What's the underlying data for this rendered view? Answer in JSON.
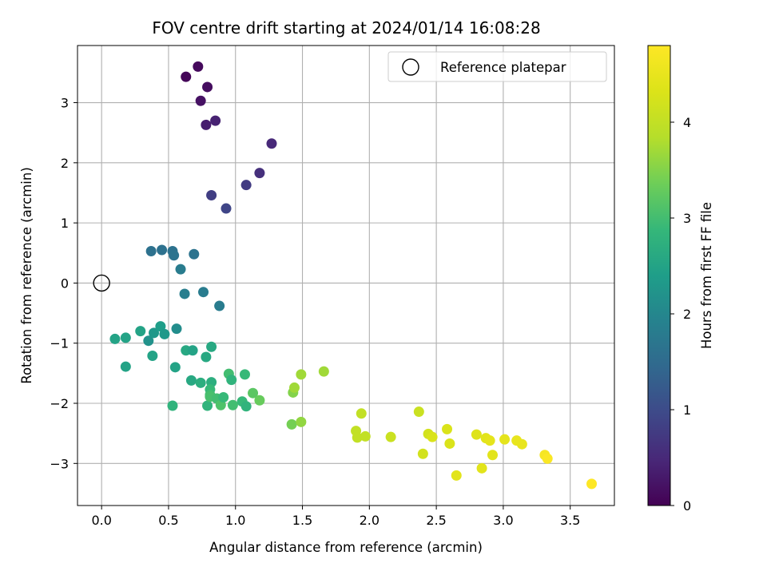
{
  "chart_data": {
    "type": "scatter",
    "title": "FOV centre drift starting at 2024/01/14 16:08:28",
    "xlabel": "Angular distance from reference (arcmin)",
    "ylabel": "Rotation from reference (arcmin)",
    "xlim": [
      -0.18,
      3.83
    ],
    "ylim": [
      -3.7,
      3.95
    ],
    "x_ticks": [
      0.0,
      0.5,
      1.0,
      1.5,
      2.0,
      2.5,
      3.0,
      3.5
    ],
    "x_tick_labels": [
      "0.0",
      "0.5",
      "1.0",
      "1.5",
      "2.0",
      "2.5",
      "3.0",
      "3.5"
    ],
    "y_ticks": [
      -3,
      -2,
      -1,
      0,
      1,
      2,
      3
    ],
    "y_tick_labels": [
      "−3",
      "−2",
      "−1",
      "0",
      "1",
      "2",
      "3"
    ],
    "grid": true,
    "legend": {
      "placement": "top-right",
      "entries": [
        {
          "label": "Reference platepar",
          "marker": "open-circle"
        }
      ]
    },
    "reference_point": {
      "x": 0.0,
      "y": 0.0
    },
    "colorbar": {
      "label": "Hours from first FF file",
      "colormap": "viridis",
      "range": [
        0,
        4.8
      ],
      "ticks": [
        0,
        1,
        2,
        3,
        4
      ],
      "tick_labels": [
        "0",
        "1",
        "2",
        "3",
        "4"
      ]
    },
    "points": [
      {
        "x": 0.63,
        "y": 3.43,
        "c": 0.05
      },
      {
        "x": 0.72,
        "y": 3.6,
        "c": 0.1
      },
      {
        "x": 0.79,
        "y": 3.26,
        "c": 0.15
      },
      {
        "x": 0.74,
        "y": 3.03,
        "c": 0.2
      },
      {
        "x": 0.78,
        "y": 2.63,
        "c": 0.35
      },
      {
        "x": 0.85,
        "y": 2.7,
        "c": 0.4
      },
      {
        "x": 1.27,
        "y": 2.32,
        "c": 0.5
      },
      {
        "x": 1.18,
        "y": 1.83,
        "c": 0.6
      },
      {
        "x": 0.82,
        "y": 1.46,
        "c": 0.8
      },
      {
        "x": 1.08,
        "y": 1.63,
        "c": 0.75
      },
      {
        "x": 0.93,
        "y": 1.24,
        "c": 0.9
      },
      {
        "x": 0.37,
        "y": 0.53,
        "c": 1.6
      },
      {
        "x": 0.45,
        "y": 0.55,
        "c": 1.6
      },
      {
        "x": 0.53,
        "y": 0.53,
        "c": 1.62
      },
      {
        "x": 0.54,
        "y": 0.46,
        "c": 1.65
      },
      {
        "x": 0.69,
        "y": 0.48,
        "c": 1.65
      },
      {
        "x": 0.59,
        "y": 0.23,
        "c": 1.8
      },
      {
        "x": 0.62,
        "y": -0.18,
        "c": 1.85
      },
      {
        "x": 0.76,
        "y": -0.15,
        "c": 1.8
      },
      {
        "x": 0.88,
        "y": -0.38,
        "c": 1.8
      },
      {
        "x": 0.1,
        "y": -0.93,
        "c": 2.5
      },
      {
        "x": 0.18,
        "y": -0.91,
        "c": 2.5
      },
      {
        "x": 0.29,
        "y": -0.8,
        "c": 2.5
      },
      {
        "x": 0.35,
        "y": -0.96,
        "c": 2.2
      },
      {
        "x": 0.39,
        "y": -0.83,
        "c": 2.3
      },
      {
        "x": 0.44,
        "y": -0.72,
        "c": 2.4
      },
      {
        "x": 0.47,
        "y": -0.85,
        "c": 2.3
      },
      {
        "x": 0.56,
        "y": -0.76,
        "c": 2.1
      },
      {
        "x": 0.38,
        "y": -1.21,
        "c": 2.5
      },
      {
        "x": 0.18,
        "y": -1.39,
        "c": 2.5
      },
      {
        "x": 0.55,
        "y": -1.4,
        "c": 2.5
      },
      {
        "x": 0.63,
        "y": -1.12,
        "c": 2.6
      },
      {
        "x": 0.68,
        "y": -1.12,
        "c": 2.5
      },
      {
        "x": 0.78,
        "y": -1.23,
        "c": 2.6
      },
      {
        "x": 0.82,
        "y": -1.06,
        "c": 2.6
      },
      {
        "x": 0.67,
        "y": -1.62,
        "c": 2.6
      },
      {
        "x": 0.74,
        "y": -1.66,
        "c": 2.7
      },
      {
        "x": 0.82,
        "y": -1.65,
        "c": 2.7
      },
      {
        "x": 0.53,
        "y": -2.04,
        "c": 2.8
      },
      {
        "x": 0.79,
        "y": -2.04,
        "c": 2.8
      },
      {
        "x": 0.81,
        "y": -1.77,
        "c": 2.9
      },
      {
        "x": 0.81,
        "y": -1.86,
        "c": 3.0
      },
      {
        "x": 0.81,
        "y": -1.89,
        "c": 3.05
      },
      {
        "x": 0.86,
        "y": -1.92,
        "c": 3.0
      },
      {
        "x": 0.89,
        "y": -2.03,
        "c": 3.1
      },
      {
        "x": 0.91,
        "y": -1.9,
        "c": 2.9
      },
      {
        "x": 0.95,
        "y": -1.51,
        "c": 3.0
      },
      {
        "x": 0.97,
        "y": -1.61,
        "c": 2.8
      },
      {
        "x": 0.98,
        "y": -2.03,
        "c": 3.0
      },
      {
        "x": 1.05,
        "y": -1.97,
        "c": 2.9
      },
      {
        "x": 1.07,
        "y": -1.52,
        "c": 2.9
      },
      {
        "x": 1.08,
        "y": -2.05,
        "c": 2.8
      },
      {
        "x": 1.13,
        "y": -1.83,
        "c": 3.2
      },
      {
        "x": 1.18,
        "y": -1.95,
        "c": 3.3
      },
      {
        "x": 1.42,
        "y": -2.35,
        "c": 3.4
      },
      {
        "x": 1.43,
        "y": -1.82,
        "c": 3.5
      },
      {
        "x": 1.44,
        "y": -1.74,
        "c": 3.7
      },
      {
        "x": 1.49,
        "y": -1.52,
        "c": 3.7
      },
      {
        "x": 1.49,
        "y": -2.31,
        "c": 3.6
      },
      {
        "x": 1.66,
        "y": -1.47,
        "c": 3.7
      },
      {
        "x": 1.9,
        "y": -2.46,
        "c": 4.0
      },
      {
        "x": 1.91,
        "y": -2.57,
        "c": 4.0
      },
      {
        "x": 1.94,
        "y": -2.17,
        "c": 4.0
      },
      {
        "x": 1.97,
        "y": -2.55,
        "c": 4.0
      },
      {
        "x": 2.16,
        "y": -2.56,
        "c": 4.1
      },
      {
        "x": 2.37,
        "y": -2.14,
        "c": 4.1
      },
      {
        "x": 2.4,
        "y": -2.84,
        "c": 4.2
      },
      {
        "x": 2.44,
        "y": -2.51,
        "c": 4.2
      },
      {
        "x": 2.47,
        "y": -2.56,
        "c": 4.3
      },
      {
        "x": 2.58,
        "y": -2.43,
        "c": 4.3
      },
      {
        "x": 2.6,
        "y": -2.67,
        "c": 4.3
      },
      {
        "x": 2.65,
        "y": -3.2,
        "c": 4.4
      },
      {
        "x": 2.8,
        "y": -2.52,
        "c": 4.35
      },
      {
        "x": 2.84,
        "y": -3.08,
        "c": 4.4
      },
      {
        "x": 2.87,
        "y": -2.58,
        "c": 4.4
      },
      {
        "x": 2.9,
        "y": -2.62,
        "c": 4.45
      },
      {
        "x": 2.92,
        "y": -2.86,
        "c": 4.4
      },
      {
        "x": 3.01,
        "y": -2.6,
        "c": 4.45
      },
      {
        "x": 3.1,
        "y": -2.62,
        "c": 4.5
      },
      {
        "x": 3.14,
        "y": -2.68,
        "c": 4.5
      },
      {
        "x": 3.31,
        "y": -2.86,
        "c": 4.7
      },
      {
        "x": 3.33,
        "y": -2.92,
        "c": 4.75
      },
      {
        "x": 3.66,
        "y": -3.34,
        "c": 4.8
      }
    ]
  }
}
